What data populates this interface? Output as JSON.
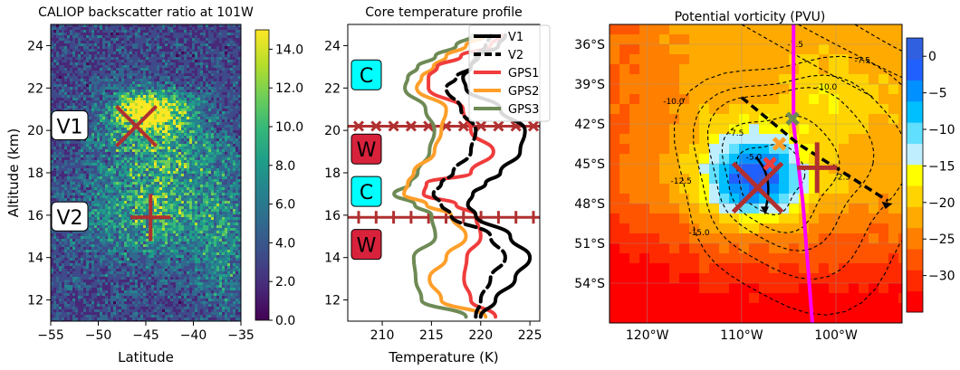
{
  "colors": {
    "viridis": [
      "#440154",
      "#482878",
      "#3e4a89",
      "#31688e",
      "#26828e",
      "#1f9e89",
      "#35b779",
      "#6ece58",
      "#b5de2b",
      "#fde725"
    ],
    "pv_scale": [
      "#ff0000",
      "#ff2a00",
      "#ff5500",
      "#ff7f00",
      "#ffaa00",
      "#ffd400",
      "#ffff00",
      "#bfefff",
      "#60dfff",
      "#00bfff",
      "#0090ff",
      "#2060ff",
      "#3060e0"
    ],
    "v1": "#000000",
    "v2": "#000000",
    "gps1": "#f03c3c",
    "gps2": "#ff9f2a",
    "gps3": "#6e8a55",
    "marker": "#b03030",
    "trajectory": "#ff00ff",
    "warm_box": "#d8223c",
    "cold_box": "#00ffff"
  },
  "chart_data": [
    {
      "type": "heatmap",
      "title": "CALIOP backscatter ratio at 101W",
      "xlabel": "Latitude",
      "ylabel": "Altitude (km)",
      "xlim": [
        -55,
        -35
      ],
      "ylim": [
        11,
        25
      ],
      "x_ticks": [
        "−55",
        "−50",
        "−45",
        "−40",
        "−35"
      ],
      "y_ticks": [
        "12",
        "14",
        "16",
        "18",
        "20",
        "22",
        "24"
      ],
      "colorbar": {
        "min": 0,
        "max": 15,
        "ticks": [
          "0.0",
          "2.0",
          "4.0",
          "6.0",
          "8.0",
          "10.0",
          "12.0",
          "14.0"
        ]
      },
      "annotations": [
        {
          "label": "V1",
          "marker": "x",
          "lat": -46,
          "alt": 20.2
        },
        {
          "label": "V2",
          "marker": "+",
          "lat": -44.5,
          "alt": 15.9
        }
      ]
    },
    {
      "type": "line",
      "title": "Core temperature profile",
      "xlabel": "Temperature (K)",
      "xlim": [
        206.5,
        226
      ],
      "ylim": [
        11,
        25
      ],
      "x_ticks": [
        "210",
        "215",
        "220",
        "225"
      ],
      "y_ticks": [
        "12",
        "14",
        "16",
        "18",
        "20",
        "22",
        "24"
      ],
      "legend_position": "top-right",
      "levels": [
        11.2,
        12,
        13,
        14,
        15,
        16,
        16.5,
        17,
        17.5,
        18,
        19,
        20,
        21,
        22,
        22.5,
        23,
        23.5,
        24,
        24.5
      ],
      "series": [
        {
          "name": "V1",
          "style": "solid",
          "values": [
            220,
            221.5,
            223.5,
            225,
            223,
            219.5,
            218.7,
            219.2,
            220.5,
            222,
            224,
            224.5,
            222,
            218.5,
            218.2,
            219,
            219.8,
            221.8,
            222.5
          ]
        },
        {
          "name": "V2",
          "style": "dashed",
          "values": [
            219.5,
            220,
            221,
            222.5,
            221,
            217,
            216,
            215.2,
            216,
            217.2,
            219,
            219.5,
            218,
            216.5,
            217.5,
            219,
            219.5,
            220.5,
            221
          ]
        },
        {
          "name": "GPS1",
          "style": "solid",
          "values": [
            221.5,
            219,
            218.3,
            218.6,
            220,
            219.5,
            217.5,
            214.2,
            214.5,
            219,
            221.3,
            219,
            218.2,
            214.7,
            214.7,
            215.6,
            218,
            221,
            222.1
          ]
        },
        {
          "name": "GPS2",
          "style": "solid",
          "values": [
            220.5,
            216,
            214.8,
            216.5,
            218.5,
            217,
            214.5,
            212.2,
            212.6,
            213.2,
            215.3,
            216,
            216.5,
            213.5,
            214,
            215.2,
            216.5,
            218.5,
            220.5
          ]
        },
        {
          "name": "GPS3",
          "style": "solid",
          "values": [
            218.5,
            214,
            213.4,
            213.2,
            215.4,
            215,
            213.3,
            211.2,
            212.8,
            213.6,
            214.8,
            215.3,
            214.4,
            212.3,
            212.6,
            213.6,
            215.4,
            217.5,
            219.2
          ]
        }
      ],
      "reference_levels": [
        {
          "alt": 20.2,
          "marker": "x"
        },
        {
          "alt": 15.9,
          "marker": "+"
        }
      ],
      "layer_labels": [
        {
          "label": "C",
          "kind": "cold",
          "alt": 22.6
        },
        {
          "label": "W",
          "kind": "warm",
          "alt": 19.1
        },
        {
          "label": "C",
          "kind": "cold",
          "alt": 17.1
        },
        {
          "label": "W",
          "kind": "warm",
          "alt": 14.6
        }
      ]
    },
    {
      "type": "heatmap",
      "title": "Potential vorticity (PVU)",
      "xlim": [
        -124,
        -93
      ],
      "ylim": [
        -57,
        -34.5
      ],
      "x_ticks": [
        "120°W",
        "110°W",
        "100°W"
      ],
      "y_ticks": [
        "36°S",
        "39°S",
        "42°S",
        "45°S",
        "48°S",
        "51°S",
        "54°S"
      ],
      "colorbar": {
        "min": -35,
        "max": 2.5,
        "ticks": [
          "0",
          "−5",
          "−10",
          "−15",
          "−20",
          "−25",
          "−30"
        ]
      },
      "contour_labels": [
        "-7.5",
        "-7.5",
        "-10.0",
        "-10.0",
        "-7.5",
        "-5.0",
        "-12.5",
        "-2.5",
        "-15.0"
      ],
      "trajectory": {
        "lon": [
          -104.5,
          -104.5,
          -103.5,
          -102.5
        ],
        "lat": [
          -34.5,
          -42,
          -48,
          -57
        ]
      }
    }
  ]
}
